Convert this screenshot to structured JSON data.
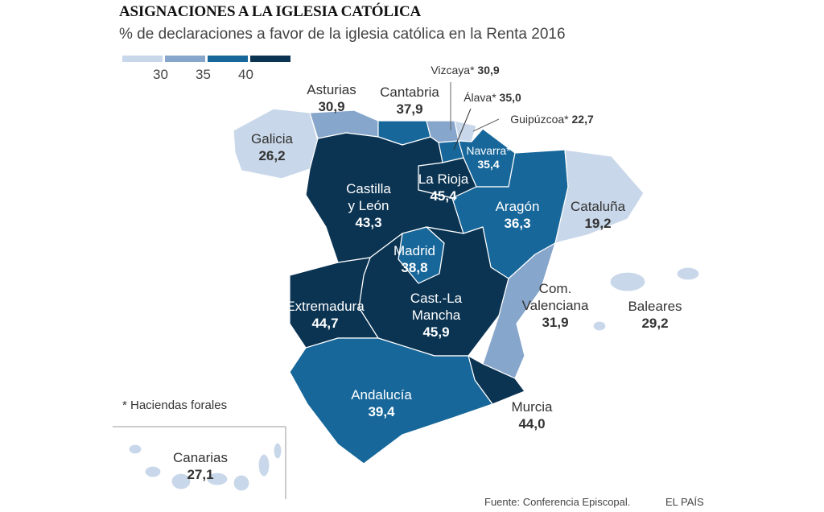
{
  "title": "ASIGNACIONES A LA IGLESIA CATÓLICA",
  "subtitle": "% de declaraciones a favor de la iglesia católica en la Renta 2016",
  "legend": {
    "ticks": [
      "30",
      "35",
      "40"
    ],
    "colors": [
      "#c8d7e9",
      "#87a6cb",
      "#17679a",
      "#0b3453"
    ],
    "breaks": [
      30,
      35,
      40
    ]
  },
  "regions": {
    "galicia": {
      "name": "Galicia",
      "value": "26,2"
    },
    "asturias": {
      "name": "Asturias",
      "value": "30,9"
    },
    "cantabria": {
      "name": "Cantabria",
      "value": "37,9"
    },
    "vizcaya": {
      "name": "Vizcaya*",
      "value": "30,9"
    },
    "alava": {
      "name": "Álava*",
      "value": "35,0"
    },
    "guipuzcoa": {
      "name": "Guipúzcoa*",
      "value": "22,7"
    },
    "navarra": {
      "name": "Navarra*",
      "value": "35,4"
    },
    "larioja": {
      "name": "La Rioja",
      "value": "45,4"
    },
    "cyl": {
      "name1": "Castilla",
      "name2": "y León",
      "value": "43,3"
    },
    "aragon": {
      "name": "Aragón",
      "value": "36,3"
    },
    "cataluna": {
      "name": "Cataluña",
      "value": "19,2"
    },
    "madrid": {
      "name": "Madrid",
      "value": "38,8"
    },
    "clm": {
      "name1": "Cast.-La",
      "name2": "Mancha",
      "value": "45,9"
    },
    "extremadura": {
      "name": "Extremadura",
      "value": "44,7"
    },
    "valenciana": {
      "name1": "Com.",
      "name2": "Valenciana",
      "value": "31,9"
    },
    "baleares": {
      "name": "Baleares",
      "value": "29,2"
    },
    "andalucia": {
      "name": "Andalucía",
      "value": "39,4"
    },
    "murcia": {
      "name": "Murcia",
      "value": "44,0"
    },
    "canarias": {
      "name": "Canarias",
      "value": "27,1"
    }
  },
  "note": "* Haciendas forales",
  "source": "Fuente: Conferencia Episcopal.",
  "brand": "EL PAÍS"
}
